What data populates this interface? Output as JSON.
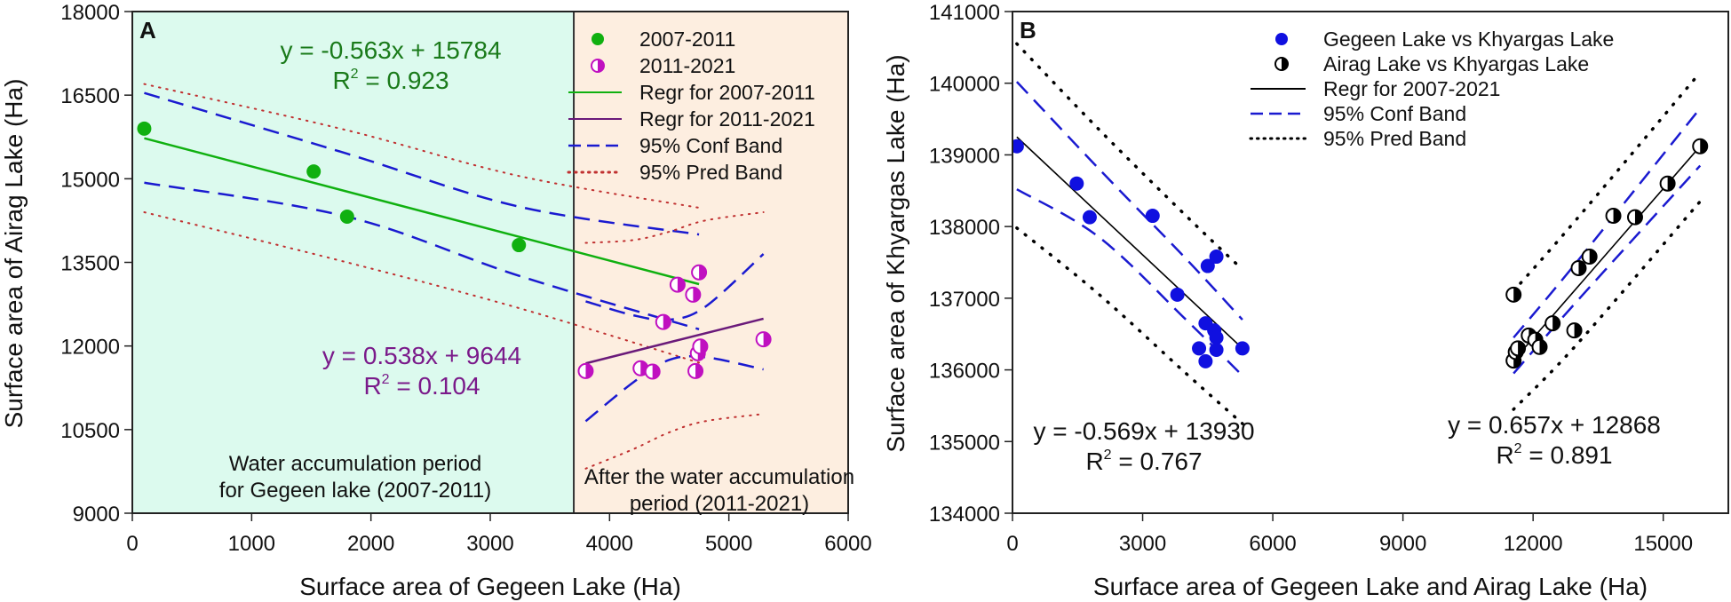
{
  "chart_data": [
    {
      "type": "scatter",
      "panel_label": "A",
      "xlabel": "Surface area of Gegeen Lake (Ha)",
      "ylabel": "Surface area of Airag Lake (Ha)",
      "xlim": [
        0,
        6000
      ],
      "ylim": [
        9000,
        18000
      ],
      "xticks": [
        0,
        1000,
        2000,
        3000,
        4000,
        5000,
        6000
      ],
      "yticks": [
        9000,
        10500,
        12000,
        13500,
        15000,
        16500,
        18000
      ],
      "grid": false,
      "legend_position": "top-right",
      "regions": [
        {
          "name": "Water accumulation period",
          "x_from": 0,
          "x_to": 3700,
          "color": "#dcfaee",
          "label_lines": [
            "Water accumulation period",
            "for Gegeen lake (2007-2011)"
          ]
        },
        {
          "name": "After accumulation",
          "x_from": 3700,
          "x_to": 6000,
          "color": "#fdeee0",
          "label_lines": [
            "After the water accumulation",
            "period (2011-2021)"
          ]
        }
      ],
      "series": [
        {
          "name": "2007-2011",
          "marker": "filled-circle",
          "color": "#10b010",
          "points": [
            [
              100,
              15900
            ],
            [
              1520,
              15130
            ],
            [
              1800,
              14320
            ],
            [
              3240,
              13810
            ]
          ]
        },
        {
          "name": "2011-2021",
          "marker": "half-filled-circle",
          "color": "#c010c0",
          "points": [
            [
              3800,
              11550
            ],
            [
              4260,
              11600
            ],
            [
              4360,
              11540
            ],
            [
              4450,
              12430
            ],
            [
              4570,
              13100
            ],
            [
              4700,
              12920
            ],
            [
              4750,
              13320
            ],
            [
              4720,
              11550
            ],
            [
              4740,
              11870
            ],
            [
              4760,
              11990
            ],
            [
              5290,
              12120
            ]
          ]
        }
      ],
      "regressions": [
        {
          "name": "Regr for 2007-2011",
          "slope": -0.563,
          "intercept": 15784,
          "x_range": [
            100,
            4750
          ],
          "color": "#10b010",
          "equation": "y = -0.563x + 15784",
          "r2_label": "R",
          "r2_value": " = 0.923",
          "text_color": "#1a7a1a",
          "conf_band": {
            "upper": [
              [
                100,
                16540
              ],
              [
                1800,
                15450
              ],
              [
                3240,
                14500
              ],
              [
                4750,
                14000
              ]
            ],
            "lower": [
              [
                100,
                14930
              ],
              [
                1800,
                14320
              ],
              [
                3240,
                13260
              ],
              [
                4750,
                12300
              ]
            ]
          },
          "pred_band": {
            "upper": [
              [
                100,
                16700
              ],
              [
                1800,
                15870
              ],
              [
                3240,
                15050
              ],
              [
                4750,
                14480
              ]
            ],
            "lower": [
              [
                100,
                14400
              ],
              [
                1800,
                13500
              ],
              [
                3240,
                12680
              ],
              [
                4750,
                11700
              ]
            ]
          }
        },
        {
          "name": "Regr for 2011-2021",
          "slope": 0.538,
          "intercept": 9644,
          "x_range": [
            3800,
            5290
          ],
          "color": "#6a1a7a",
          "equation": "y = 0.538x + 9644",
          "r2_label": "R",
          "r2_value": " = 0.104",
          "text_color": "#7a1a8a",
          "conf_band": {
            "upper": [
              [
                3800,
                12800
              ],
              [
                4200,
                12550
              ],
              [
                4500,
                12470
              ],
              [
                4800,
                12700
              ],
              [
                5290,
                13650
              ]
            ],
            "lower": [
              [
                3800,
                10650
              ],
              [
                4200,
                11350
              ],
              [
                4500,
                11750
              ],
              [
                4800,
                11800
              ],
              [
                5290,
                11580
              ]
            ]
          },
          "pred_band": {
            "upper": [
              [
                3800,
                13850
              ],
              [
                4200,
                13900
              ],
              [
                4500,
                14050
              ],
              [
                4800,
                14250
              ],
              [
                5290,
                14400
              ]
            ],
            "lower": [
              [
                3800,
                9800
              ],
              [
                4200,
                10150
              ],
              [
                4500,
                10450
              ],
              [
                4800,
                10650
              ],
              [
                5290,
                10780
              ]
            ]
          }
        }
      ],
      "legend": [
        {
          "label": "2007-2011",
          "kind": "filled-circle",
          "color": "#10b010"
        },
        {
          "label": "2011-2021",
          "kind": "half-filled-circle",
          "color": "#c010c0"
        },
        {
          "label": "Regr for 2007-2011",
          "kind": "solid",
          "color": "#10b010"
        },
        {
          "label": "Regr for 2011-2021",
          "kind": "solid",
          "color": "#6a1a7a"
        },
        {
          "label": "95% Conf Band",
          "kind": "dashed",
          "color": "#1a1ad0"
        },
        {
          "label": "95% Pred Band",
          "kind": "dotted",
          "color": "#c03030"
        }
      ]
    },
    {
      "type": "scatter",
      "panel_label": "B",
      "xlabel": "Surface area of Gegeen Lake and Airag Lake (Ha)",
      "ylabel": "Surface area of Khyargas Lake (Ha)",
      "xlim": [
        0,
        16500
      ],
      "ylim": [
        134000,
        141000
      ],
      "xticks": [
        0,
        3000,
        6000,
        9000,
        12000,
        15000
      ],
      "yticks": [
        134000,
        135000,
        136000,
        137000,
        138000,
        139000,
        140000,
        141000
      ],
      "grid": false,
      "legend_position": "top-center",
      "series": [
        {
          "name": "Gegeen Lake vs Khyargas Lake",
          "marker": "filled-circle",
          "color": "#1010e0",
          "points": [
            [
              100,
              139120
            ],
            [
              1480,
              138600
            ],
            [
              1780,
              138130
            ],
            [
              3230,
              138150
            ],
            [
              3800,
              137050
            ],
            [
              4500,
              137450
            ],
            [
              4700,
              137580
            ],
            [
              4300,
              136300
            ],
            [
              4450,
              136650
            ],
            [
              4650,
              136550
            ],
            [
              4700,
              136450
            ],
            [
              4700,
              136280
            ],
            [
              4450,
              136120
            ],
            [
              5300,
              136300
            ]
          ]
        },
        {
          "name": "Airag Lake vs Khyargas Lake",
          "marker": "half-filled-circle",
          "color": "#000000",
          "points": [
            [
              11550,
              137050
            ],
            [
              11550,
              136130
            ],
            [
              11600,
              136250
            ],
            [
              11650,
              136300
            ],
            [
              11900,
              136480
            ],
            [
              12050,
              136420
            ],
            [
              12150,
              136320
            ],
            [
              12450,
              136650
            ],
            [
              12950,
              136550
            ],
            [
              13050,
              137420
            ],
            [
              13300,
              137580
            ],
            [
              13850,
              138150
            ],
            [
              14350,
              138130
            ],
            [
              15100,
              138600
            ],
            [
              15850,
              139120
            ]
          ]
        }
      ],
      "regressions": [
        {
          "name": "Regr for 2007-2021 (Gegeen)",
          "x_range": [
            100,
            5300
          ],
          "y_range": [
            139250,
            136300
          ],
          "color": "#000000",
          "equation": "y = -0.569x + 13930",
          "r2_label": "R",
          "r2_value": " = 0.767",
          "text_color": "#111111",
          "conf_band": {
            "upper": [
              [
                100,
                140020
              ],
              [
                2000,
                138800
              ],
              [
                4000,
                137550
              ],
              [
                5300,
                136700
              ]
            ],
            "lower": [
              [
                100,
                138520
              ],
              [
                2000,
                137850
              ],
              [
                4000,
                136700
              ],
              [
                5300,
                135920
              ]
            ]
          },
          "pred_band": {
            "upper": [
              [
                100,
                140550
              ],
              [
                2000,
                139350
              ],
              [
                4000,
                138150
              ],
              [
                5300,
                137400
              ]
            ],
            "lower": [
              [
                100,
                137980
              ],
              [
                2000,
                137050
              ],
              [
                4000,
                135950
              ],
              [
                5300,
                135250
              ]
            ]
          }
        },
        {
          "name": "Regr for 2007-2021 (Airag)",
          "x_range": [
            11550,
            15850
          ],
          "y_range": [
            136130,
            139120
          ],
          "color": "#000000",
          "equation": "y = 0.657x + 12868",
          "r2_label": "R",
          "r2_value": " = 0.891",
          "text_color": "#111111",
          "conf_band": {
            "upper": [
              [
                11550,
                136450
              ],
              [
                13000,
                137500
              ],
              [
                15850,
                139650
              ]
            ],
            "lower": [
              [
                11550,
                135950
              ],
              [
                13000,
                136950
              ],
              [
                15850,
                138850
              ]
            ]
          },
          "pred_band": {
            "upper": [
              [
                11550,
                137100
              ],
              [
                13000,
                138100
              ],
              [
                15850,
                140150
              ]
            ],
            "lower": [
              [
                11550,
                135450
              ],
              [
                13000,
                136350
              ],
              [
                15850,
                138350
              ]
            ]
          }
        }
      ],
      "legend": [
        {
          "label": "Gegeen Lake vs Khyargas Lake",
          "kind": "filled-circle",
          "color": "#1010e0"
        },
        {
          "label": "Airag Lake vs Khyargas Lake",
          "kind": "half-filled-circle",
          "color": "#000000"
        },
        {
          "label": "Regr for 2007-2021",
          "kind": "solid",
          "color": "#000000"
        },
        {
          "label": "95% Conf Band",
          "kind": "dashed",
          "color": "#1a1ad0"
        },
        {
          "label": "95% Pred Band",
          "kind": "dotted",
          "color": "#000000"
        }
      ]
    }
  ]
}
